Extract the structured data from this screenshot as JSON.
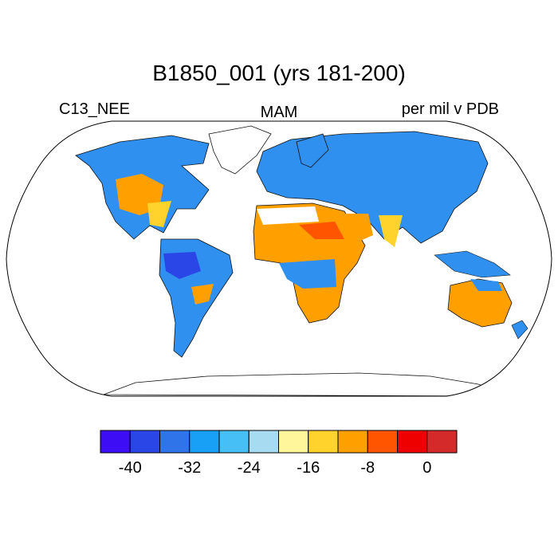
{
  "title": "B1850_001 (yrs 181-200)",
  "left_label": "C13_NEE",
  "center_label": "MAM",
  "right_label": "per mil v PDB",
  "colorbar": {
    "colors": [
      "#3d0ef5",
      "#2b46e6",
      "#3074ea",
      "#18a0f7",
      "#45bff5",
      "#a7dbf1",
      "#fff59a",
      "#ffd22c",
      "#ffa000",
      "#ff5500",
      "#ee0000",
      "#d42a2a"
    ],
    "ticks": [
      {
        "value": -40,
        "label": "-40"
      },
      {
        "value": -32,
        "label": "-32"
      },
      {
        "value": -24,
        "label": "-24"
      },
      {
        "value": -16,
        "label": "-16"
      },
      {
        "value": -8,
        "label": "-8"
      },
      {
        "value": 0,
        "label": "0"
      }
    ],
    "min": -44,
    "step": 4
  },
  "projection": "Robinson"
}
